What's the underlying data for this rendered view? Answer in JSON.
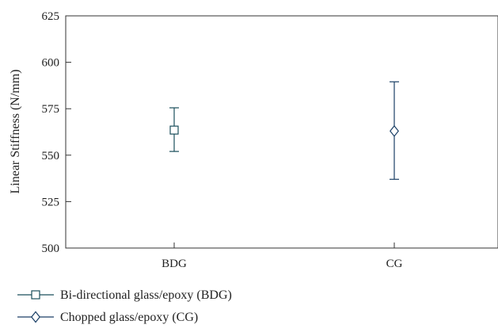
{
  "chart_data": {
    "type": "scatter",
    "title": "",
    "xlabel": "",
    "ylabel": "Linear Stiffness (N/mm)",
    "categories": [
      "BDG",
      "CG"
    ],
    "ylim": [
      500,
      625
    ],
    "yticks": [
      500,
      525,
      550,
      575,
      600,
      625
    ],
    "grid": false,
    "legend_position": "bottom-left",
    "series": [
      {
        "name": "Bi-directional glass/epoxy (BDG)",
        "category": "BDG",
        "marker": "square",
        "color": "#1b4f5c",
        "mean": 563.5,
        "error_low": 552,
        "error_high": 575.5
      },
      {
        "name": "Chopped glass/epoxy (CG)",
        "category": "CG",
        "marker": "diamond",
        "color": "#1a3f66",
        "mean": 563,
        "error_low": 537,
        "error_high": 589.5
      }
    ]
  }
}
